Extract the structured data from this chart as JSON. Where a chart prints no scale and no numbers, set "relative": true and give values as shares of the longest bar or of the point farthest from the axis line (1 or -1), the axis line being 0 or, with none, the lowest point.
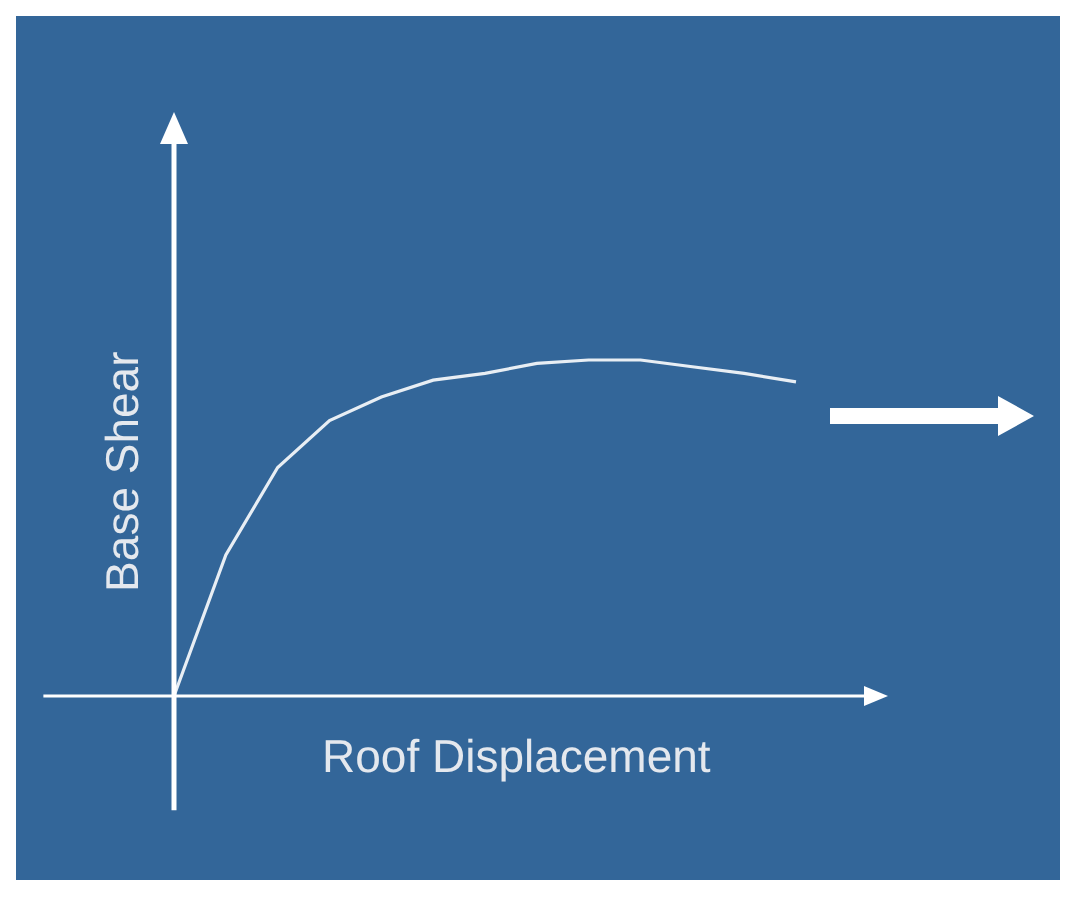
{
  "chart_data": {
    "type": "line",
    "relative": true,
    "xlabel": "Roof Displacement",
    "ylabel": "Base Shear",
    "color": "#e8eef4",
    "categories": [
      null,
      null,
      null,
      null,
      null,
      null,
      null,
      null,
      null,
      null,
      null,
      null,
      null
    ],
    "values": [
      0,
      0.42,
      0.68,
      0.82,
      0.89,
      0.94,
      0.96,
      0.99,
      1,
      1,
      0.98,
      0.96,
      0.935
    ],
    "grid": false,
    "legend": false,
    "marker": "none",
    "line_style": "solid"
  }
}
